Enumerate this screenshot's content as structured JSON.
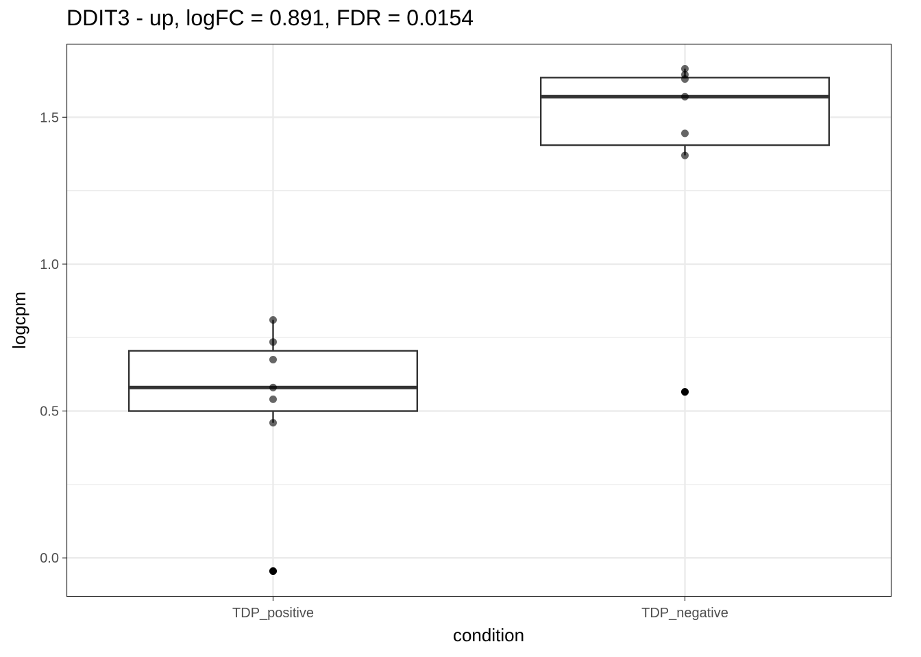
{
  "chart_data": {
    "type": "box",
    "title": "DDIT3 - up, logFC = 0.891, FDR = 0.0154",
    "xlabel": "condition",
    "ylabel": "logcpm",
    "ylim": [
      -0.13,
      1.75
    ],
    "yticks": [
      0.0,
      0.5,
      1.0,
      1.5
    ],
    "ytick_labels": [
      "0.0",
      "0.5",
      "1.0",
      "1.5"
    ],
    "grid": true,
    "categories": [
      "TDP_positive",
      "TDP_negative"
    ],
    "boxes": [
      {
        "category": "TDP_positive",
        "q1": 0.5,
        "median": 0.58,
        "q3": 0.705,
        "whisker_low": 0.46,
        "whisker_high": 0.81,
        "outliers": [
          -0.045
        ]
      },
      {
        "category": "TDP_negative",
        "q1": 1.405,
        "median": 1.57,
        "q3": 1.635,
        "whisker_low": 1.37,
        "whisker_high": 1.665,
        "outliers": [
          0.565
        ]
      }
    ],
    "points": [
      {
        "category": "TDP_positive",
        "values": [
          -0.045,
          0.46,
          0.54,
          0.58,
          0.675,
          0.735,
          0.81
        ]
      },
      {
        "category": "TDP_negative",
        "values": [
          0.565,
          1.37,
          1.445,
          1.57,
          1.63,
          1.645,
          1.665
        ]
      }
    ],
    "colors": {
      "box": "#333333",
      "point": "#000000",
      "grid": "#ebebeb",
      "panel_border": "#333333",
      "tick_text": "#4d4d4d"
    }
  }
}
